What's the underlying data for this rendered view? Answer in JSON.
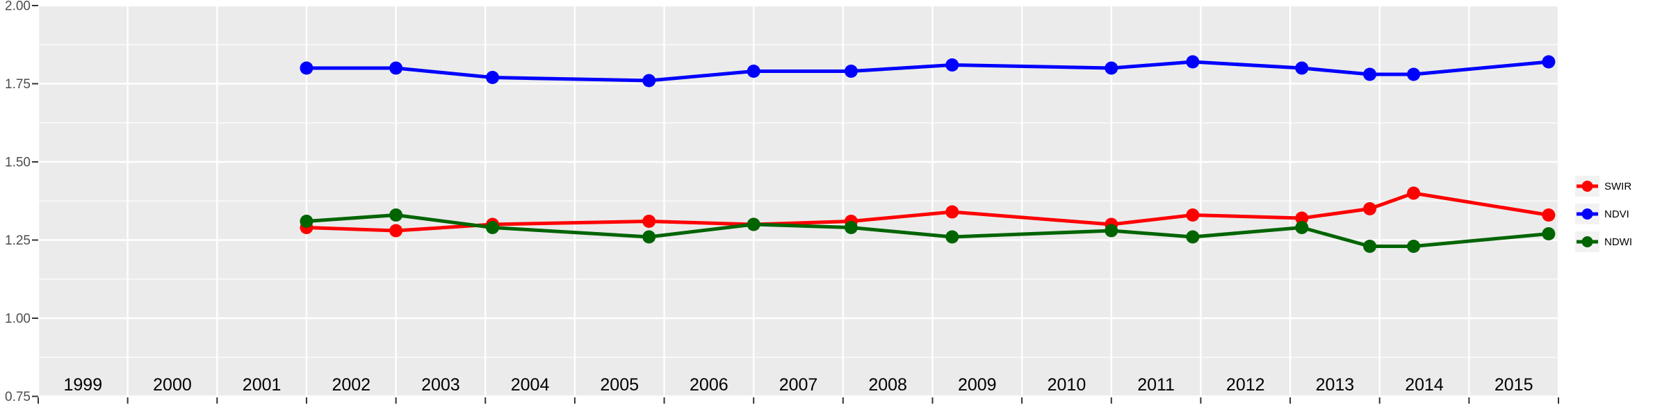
{
  "chart_data": {
    "type": "line",
    "title": "",
    "xlabel": "",
    "ylabel": "",
    "x": [
      2002.0,
      2003.0,
      2004.08,
      2005.83,
      2007.0,
      2008.09,
      2009.22,
      2011.0,
      2011.91,
      2013.13,
      2013.89,
      2014.38,
      2015.89
    ],
    "series": [
      {
        "name": "SWIR",
        "color": "#FF0000",
        "values": [
          1.29,
          1.28,
          1.3,
          1.31,
          1.3,
          1.31,
          1.34,
          1.3,
          1.33,
          1.32,
          1.35,
          1.4,
          1.33
        ]
      },
      {
        "name": "NDVI",
        "color": "#0000FF",
        "values": [
          1.8,
          1.8,
          1.77,
          1.76,
          1.79,
          1.79,
          1.81,
          1.8,
          1.82,
          1.8,
          1.78,
          1.78,
          1.82
        ]
      },
      {
        "name": "NDWI",
        "color": "#006400",
        "values": [
          1.31,
          1.33,
          1.29,
          1.26,
          1.3,
          1.29,
          1.26,
          1.28,
          1.26,
          1.29,
          1.23,
          1.23,
          1.27
        ]
      }
    ],
    "x_axis": {
      "range": [
        1999,
        2016
      ],
      "tick_years": [
        1999,
        2000,
        2001,
        2002,
        2003,
        2004,
        2005,
        2006,
        2007,
        2008,
        2009,
        2010,
        2011,
        2012,
        2013,
        2014,
        2015,
        2016
      ],
      "year_labels": [
        "1999",
        "2000",
        "2001",
        "2002",
        "2003",
        "2004",
        "2005",
        "2006",
        "2007",
        "2008",
        "2009",
        "2010",
        "2011",
        "2012",
        "2013",
        "2014",
        "2015"
      ]
    },
    "y_axis": {
      "range": [
        0.75,
        2.0
      ],
      "tick_values": [
        2.0,
        1.75,
        1.5,
        1.25,
        1.0,
        0.75
      ],
      "tick_labels": [
        "2.00",
        "1.75",
        "1.50",
        "1.25",
        "1.00",
        "0.75"
      ],
      "minor_values": [
        1.875,
        1.625,
        1.375,
        1.125,
        0.875
      ]
    },
    "legend": {
      "position": "right",
      "entries": [
        "SWIR",
        "NDVI",
        "NDWI"
      ]
    },
    "grid": "on",
    "colors": {
      "panel_background": "#EBEBEB",
      "grid_major": "#FFFFFF",
      "grid_minor": "#FFFFFF",
      "tick_mark": "#333333",
      "y_tick_text": "#4D4D4D",
      "year_label_text": "#000000",
      "legend_key_background": "#F2F2F2"
    }
  }
}
